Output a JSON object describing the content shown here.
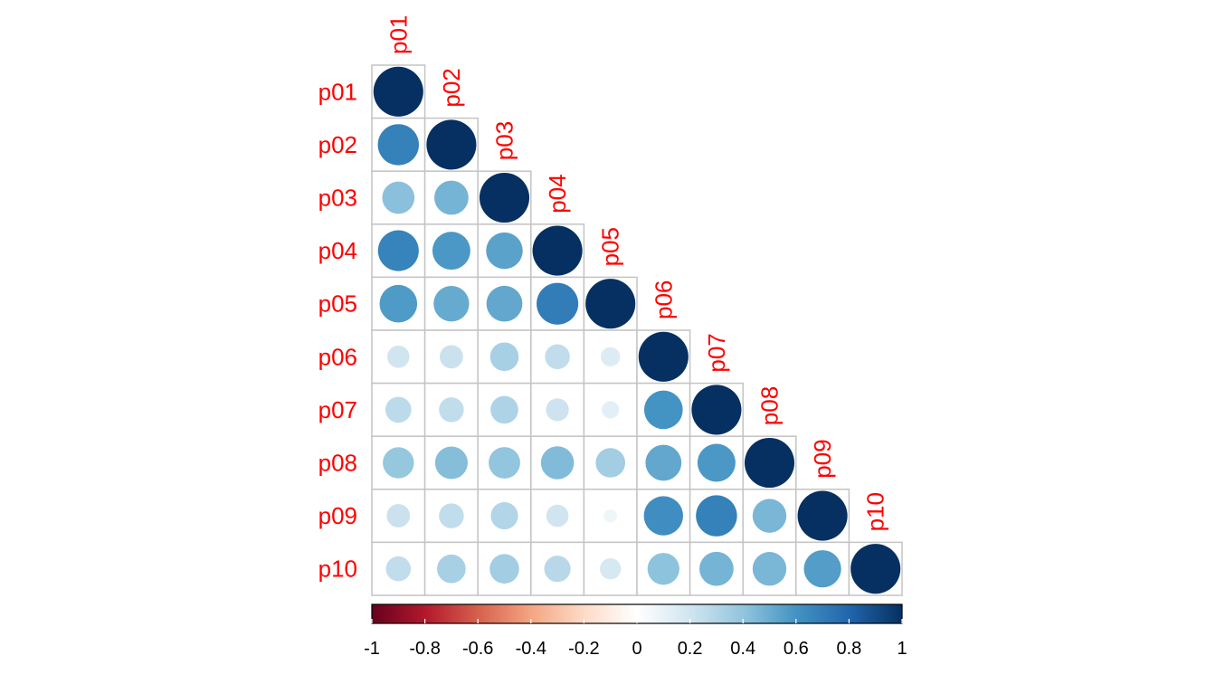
{
  "chart_data": {
    "type": "heatmap",
    "layout": "lower-triangle",
    "glyph": "circle",
    "variables": [
      "p01",
      "p02",
      "p03",
      "p04",
      "p05",
      "p06",
      "p07",
      "p08",
      "p09",
      "p10"
    ],
    "label_color": "#ff0000",
    "grid_color": "#c4c4c4",
    "matrix": [
      [
        1.0
      ],
      [
        0.68,
        1.0
      ],
      [
        0.42,
        0.47,
        1.0
      ],
      [
        0.67,
        0.58,
        0.54,
        1.0
      ],
      [
        0.57,
        0.51,
        0.52,
        0.7,
        1.0
      ],
      [
        0.2,
        0.22,
        0.33,
        0.25,
        0.15,
        1.0
      ],
      [
        0.27,
        0.25,
        0.31,
        0.21,
        0.12,
        0.6,
        1.0
      ],
      [
        0.39,
        0.43,
        0.4,
        0.44,
        0.35,
        0.52,
        0.58,
        1.0
      ],
      [
        0.22,
        0.25,
        0.3,
        0.2,
        0.07,
        0.62,
        0.68,
        0.46,
        1.0
      ],
      [
        0.25,
        0.33,
        0.35,
        0.28,
        0.18,
        0.41,
        0.47,
        0.46,
        0.56,
        1.0
      ]
    ],
    "colorbar": {
      "range": [
        -1,
        1
      ],
      "ticks": [
        "-1",
        "-0.8",
        "-0.6",
        "-0.4",
        "-0.2",
        "0",
        "0.2",
        "0.4",
        "0.6",
        "0.8",
        "1"
      ],
      "colors": [
        "#67001f",
        "#b2182b",
        "#d6604d",
        "#f4a582",
        "#fddbc7",
        "#ffffff",
        "#d1e5f0",
        "#92c5de",
        "#4393c3",
        "#2166ac",
        "#053061"
      ]
    }
  }
}
